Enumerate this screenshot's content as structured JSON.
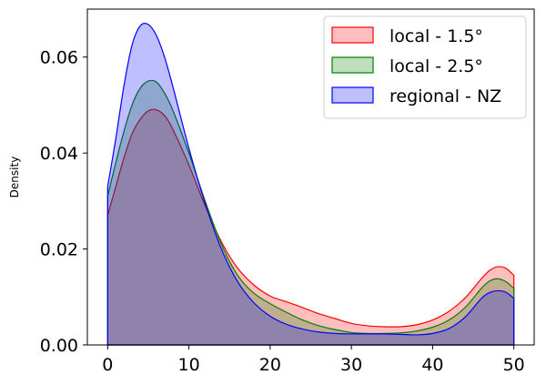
{
  "chart_data": {
    "type": "area",
    "title": "",
    "xlabel": "",
    "ylabel": "Density",
    "xlim": [
      -2.5,
      52.5
    ],
    "ylim": [
      0,
      0.07
    ],
    "xticks": [
      "0",
      "10",
      "20",
      "30",
      "40",
      "50"
    ],
    "yticks": [
      "0.00",
      "0.02",
      "0.04",
      "0.06"
    ],
    "grid": false,
    "legend_position": "top-right",
    "x": [
      0,
      1,
      2,
      3,
      4,
      5,
      6,
      7,
      8,
      10,
      12,
      14,
      16,
      18,
      20,
      22,
      24,
      26,
      28,
      30,
      32,
      34,
      36,
      38,
      40,
      42,
      44,
      46,
      47,
      48,
      49,
      50
    ],
    "series": [
      {
        "name": "local - 1.5°",
        "fill": "#ff0000",
        "edge": "#ff0000",
        "values": [
          0.027,
          0.033,
          0.039,
          0.044,
          0.047,
          0.0488,
          0.049,
          0.0478,
          0.045,
          0.0375,
          0.029,
          0.0215,
          0.016,
          0.0125,
          0.0102,
          0.009,
          0.0078,
          0.0065,
          0.0055,
          0.0045,
          0.004,
          0.0038,
          0.0038,
          0.0042,
          0.0052,
          0.007,
          0.0098,
          0.0138,
          0.0155,
          0.0163,
          0.016,
          0.0145
        ]
      },
      {
        "name": "local - 2.5°",
        "fill": "#008000",
        "edge": "#008000",
        "values": [
          0.031,
          0.038,
          0.0445,
          0.05,
          0.0535,
          0.055,
          0.0548,
          0.0525,
          0.049,
          0.04,
          0.03,
          0.021,
          0.0145,
          0.0108,
          0.0086,
          0.0068,
          0.0052,
          0.004,
          0.0032,
          0.0026,
          0.0024,
          0.0024,
          0.0025,
          0.0029,
          0.0037,
          0.0052,
          0.0078,
          0.0118,
          0.0133,
          0.0138,
          0.0132,
          0.0118
        ]
      },
      {
        "name": "regional - NZ",
        "fill": "#0000ff",
        "edge": "#0000ff",
        "values": [
          0.033,
          0.043,
          0.054,
          0.0625,
          0.0665,
          0.0668,
          0.0645,
          0.06,
          0.054,
          0.041,
          0.0295,
          0.02,
          0.0132,
          0.0088,
          0.006,
          0.0043,
          0.0033,
          0.0027,
          0.0024,
          0.0023,
          0.0023,
          0.0023,
          0.0022,
          0.0021,
          0.0024,
          0.0034,
          0.0058,
          0.0097,
          0.0109,
          0.0113,
          0.011,
          0.0097
        ]
      }
    ]
  }
}
